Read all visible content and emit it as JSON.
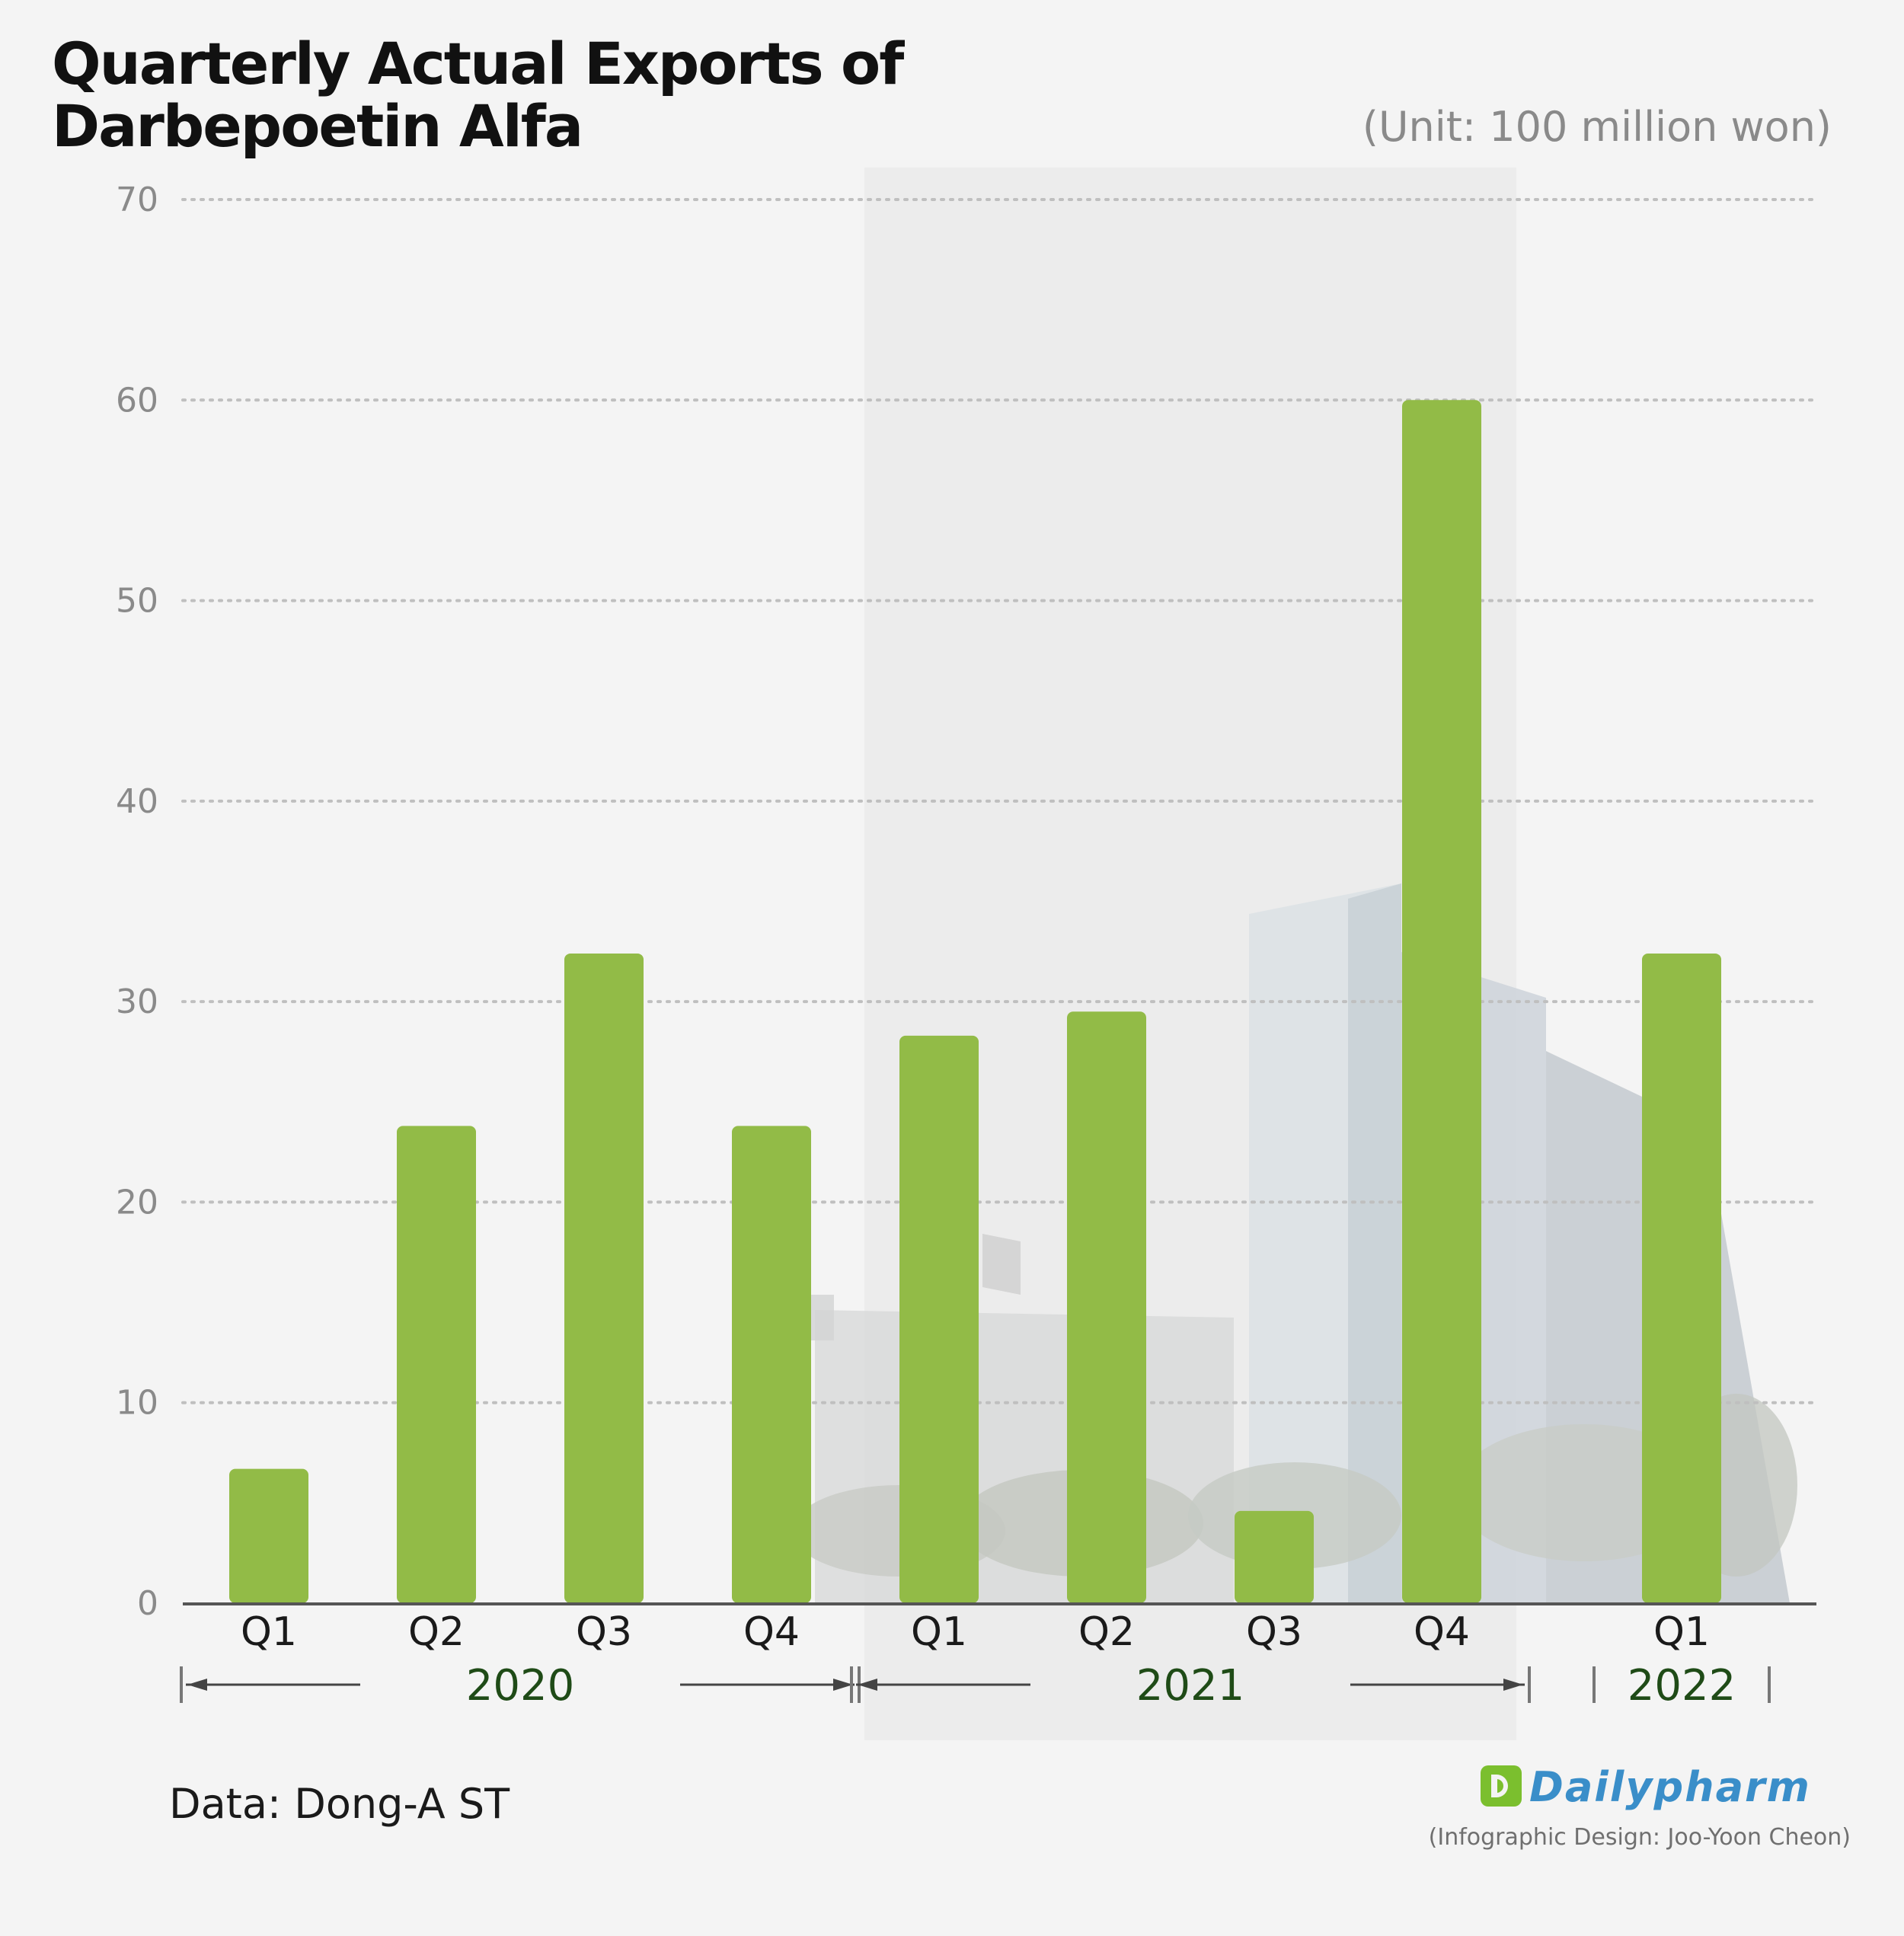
{
  "header": {
    "title_line1": "Quarterly Actual Exports of",
    "title_line2": "Darbepoetin Alfa",
    "unit": "(Unit: 100 million won)"
  },
  "footer": {
    "source": "Data: Dong-A ST",
    "logo": "Dailypharm",
    "credit": "(Infographic Design: Joo-Yoon Cheon)"
  },
  "colors": {
    "bar": "#92bb47",
    "year_label": "#1f4b17",
    "tick_label": "#8a8a8a",
    "grid": "#bfbfbf",
    "axis": "#555555",
    "highlight_band": "#ececec"
  },
  "chart_data": {
    "type": "bar",
    "title": "Quarterly Actual Exports of Darbepoetin Alfa",
    "ylabel": "(Unit: 100 million won)",
    "xlabel": "",
    "ylim": [
      0,
      70
    ],
    "yticks": [
      0,
      10,
      20,
      30,
      40,
      50,
      60,
      70
    ],
    "grid": true,
    "categories": [
      "Q1",
      "Q2",
      "Q3",
      "Q4",
      "Q1",
      "Q2",
      "Q3",
      "Q4",
      "Q1"
    ],
    "years": [
      "2020",
      "2020",
      "2020",
      "2020",
      "2021",
      "2021",
      "2021",
      "2021",
      "2022"
    ],
    "year_groups": [
      {
        "label": "2020",
        "start": 0,
        "end": 3
      },
      {
        "label": "2021",
        "start": 4,
        "end": 7
      },
      {
        "label": "2022",
        "start": 8,
        "end": 8
      }
    ],
    "highlight_year": "2021",
    "values": [
      6.7,
      23.8,
      32.4,
      23.8,
      28.3,
      29.5,
      4.6,
      60.0,
      32.4
    ]
  }
}
